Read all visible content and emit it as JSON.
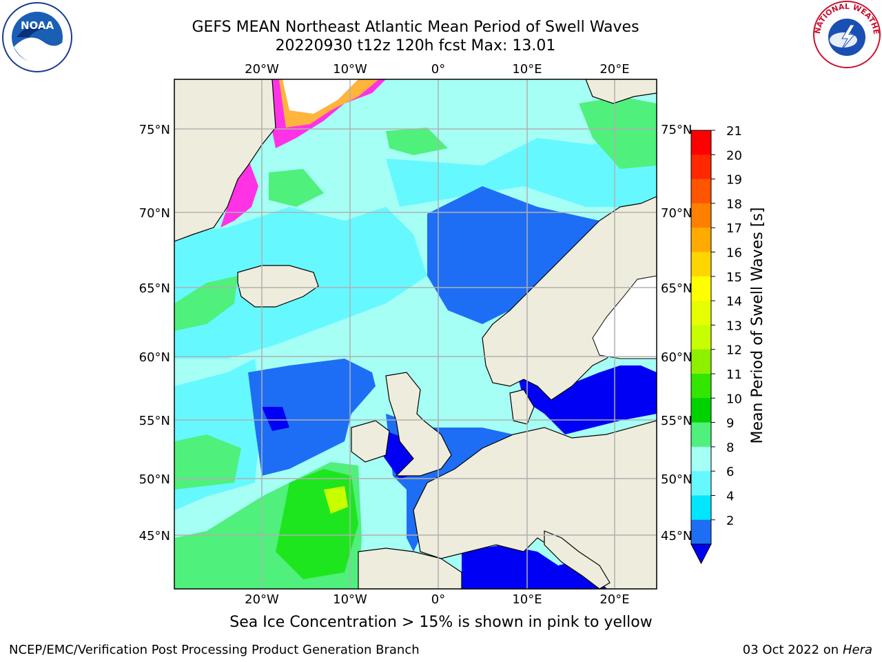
{
  "header": {
    "title_line1": "GEFS MEAN Northeast Atlantic Mean Period of Swell Waves",
    "title_line2": "20220930 t12z 120h fcst   Max: 13.01"
  },
  "logos": {
    "left": "NOAA",
    "left_ring": "NATIONAL OCEANIC AND ATMOSPHERIC ADMINISTRATION · U.S. DEPARTMENT OF COMMERCE",
    "right_ring": "NATIONAL WEATHER SERVICE"
  },
  "map": {
    "lon_labels_top": [
      "20°W",
      "10°W",
      "0°",
      "10°E",
      "20°E"
    ],
    "lon_labels_bottom": [
      "20°W",
      "10°W",
      "0°",
      "10°E",
      "20°E"
    ],
    "lat_labels_left": [
      "75°N",
      "70°N",
      "65°N",
      "60°N",
      "55°N",
      "50°N",
      "45°N"
    ],
    "lat_labels_right": [
      "75°N",
      "70°N",
      "65°N",
      "60°N",
      "55°N",
      "50°N",
      "45°N"
    ],
    "colors": {
      "land": "#eeecdc",
      "swell_2_4": "#1e6ef5",
      "swell_4_6": "#00e6ff",
      "swell_6_8": "#66f8ff",
      "swell_8_9": "#a5fff5",
      "swell_9_10": "#50f07c",
      "swell_10_11": "#1ee61e",
      "swell_11_12": "#00d200",
      "swell_below_2": "#0000f5",
      "sea_ice_low": "#ff32e6",
      "sea_ice_mid": "#ffb43c",
      "sea_ice_high": "#ffff00"
    }
  },
  "colorbar": {
    "label": "Mean Period of Swell Waves [s]",
    "ticks": [
      "21",
      "20",
      "19",
      "18",
      "17",
      "16",
      "15",
      "14",
      "13",
      "12",
      "11",
      "10",
      "9",
      "8",
      "6",
      "4",
      "2"
    ],
    "bands": [
      {
        "range": "20-21",
        "color": "#ff0000"
      },
      {
        "range": "19-20",
        "color": "#ff2800"
      },
      {
        "range": "18-19",
        "color": "#ff5500"
      },
      {
        "range": "17-18",
        "color": "#ff8000"
      },
      {
        "range": "16-17",
        "color": "#ffaa00"
      },
      {
        "range": "15-16",
        "color": "#ffd500"
      },
      {
        "range": "14-15",
        "color": "#ffff00"
      },
      {
        "range": "13-14",
        "color": "#e6ff00"
      },
      {
        "range": "12-13",
        "color": "#c8ff00"
      },
      {
        "range": "11-12",
        "color": "#8cf000"
      },
      {
        "range": "10-11",
        "color": "#32e600"
      },
      {
        "range": "9-10",
        "color": "#00d200"
      },
      {
        "range": "8-9",
        "color": "#50f07c"
      },
      {
        "range": "6-8",
        "color": "#a5fff5"
      },
      {
        "range": "4-6",
        "color": "#66f8ff"
      },
      {
        "range": "2-4",
        "color": "#00e6ff"
      },
      {
        "range": "<2",
        "color": "#1e6ef5"
      }
    ],
    "extend_color": "#0000f5"
  },
  "footer": {
    "caption": "Sea Ice Concentration > 15% is shown in pink to yellow",
    "credit": "NCEP/EMC/Verification Post Processing Product Generation Branch",
    "date": "03 Oct 2022 on ",
    "machine": "Hera"
  }
}
